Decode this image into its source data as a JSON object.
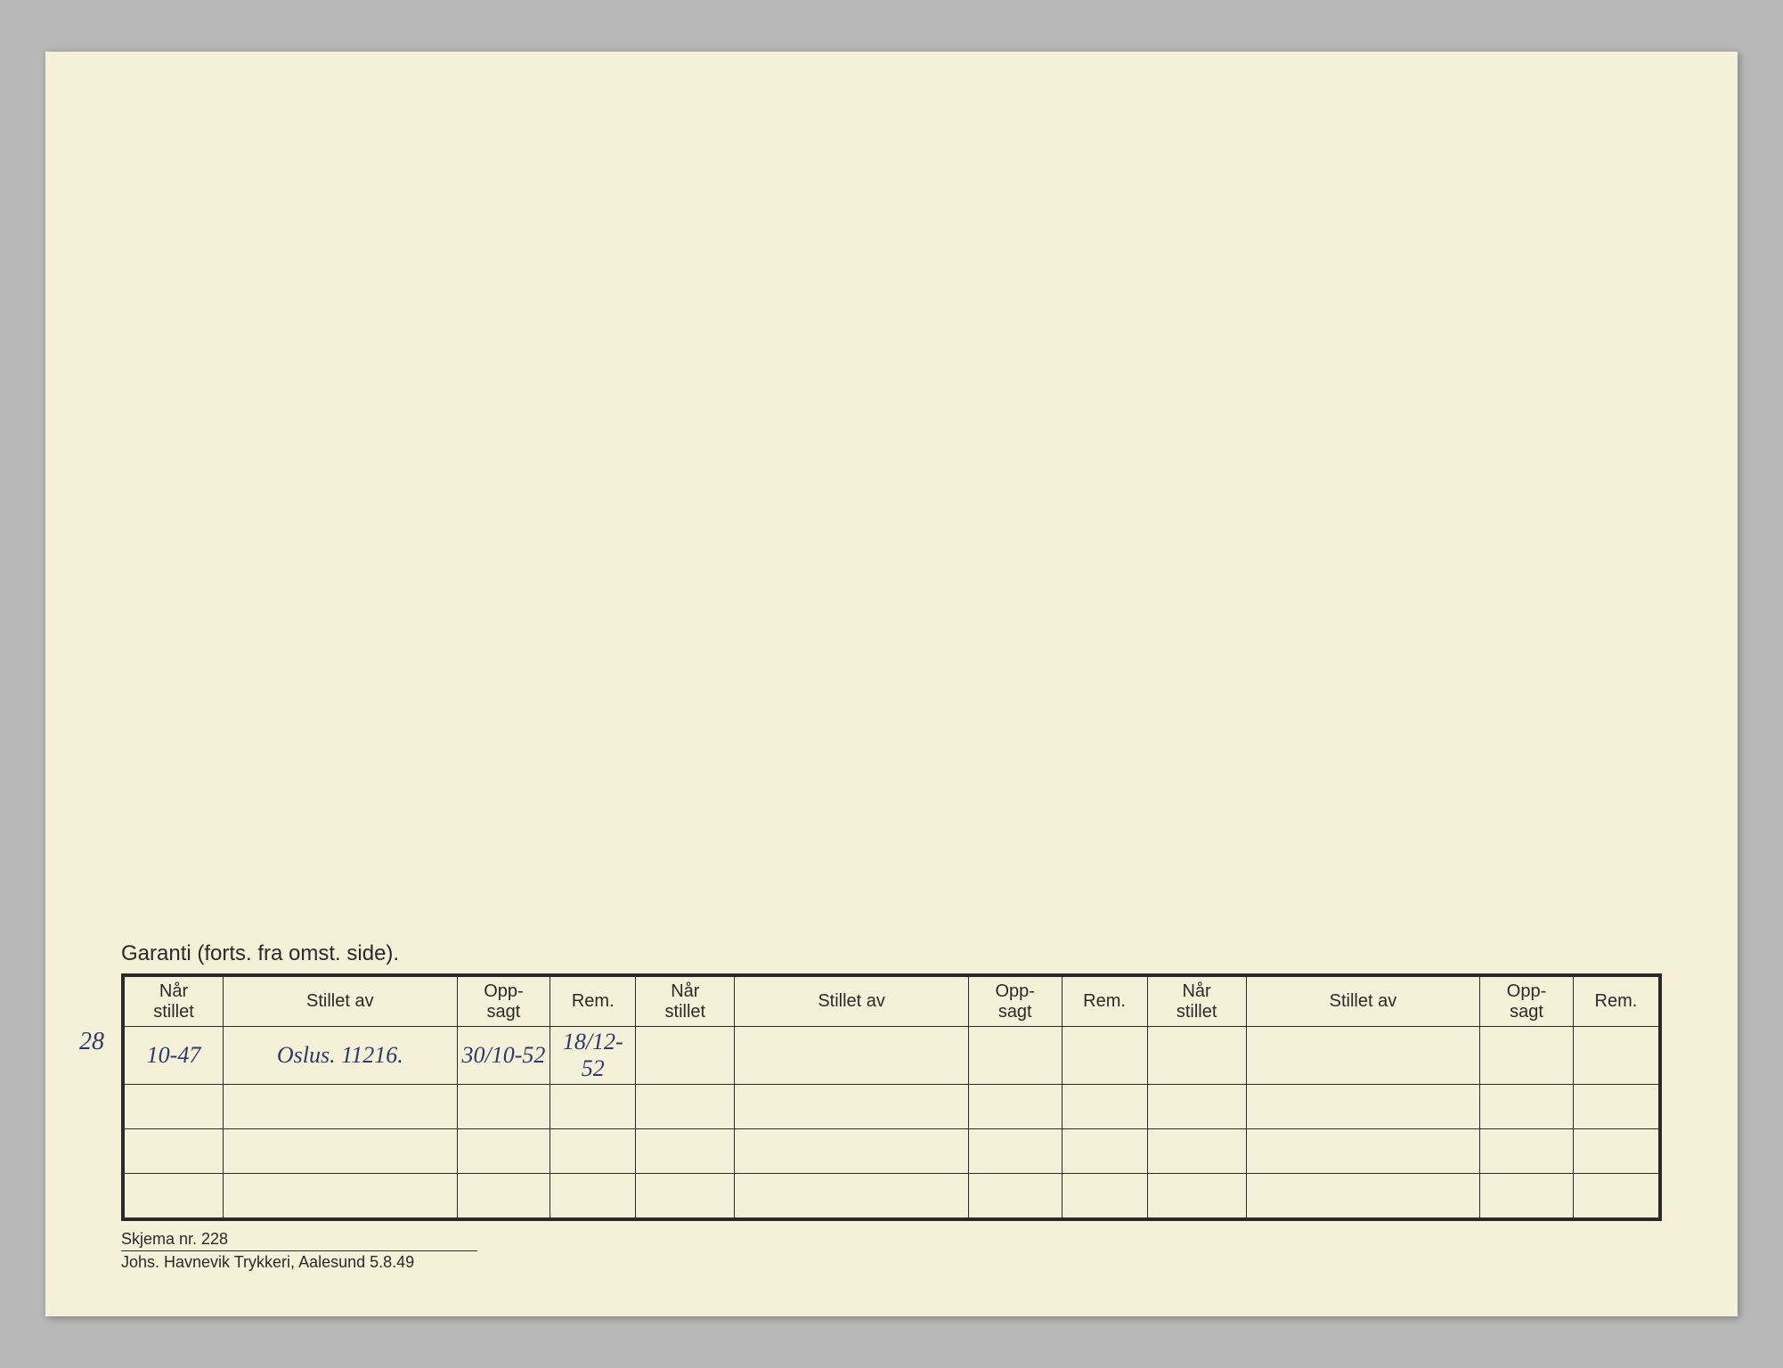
{
  "page": {
    "background_color": "#b8b8b8",
    "paper_color": "#f5f0d8",
    "text_color": "#2a2a2a",
    "handwriting_color": "#2a3a6e",
    "border_color": "#2a2a2a"
  },
  "title": "Garanti (forts. fra omst. side).",
  "table": {
    "header_groups": 3,
    "columns": [
      {
        "label": "Når\nstillet",
        "class": "col-nar"
      },
      {
        "label": "Stillet av",
        "class": "col-stillet-av"
      },
      {
        "label": "Opp-\nsagt",
        "class": "col-opp"
      },
      {
        "label": "Rem.",
        "class": "col-rem"
      }
    ],
    "num_data_rows": 4,
    "rows": [
      {
        "margin_note": "28",
        "cells": [
          "10-47",
          "Oslus. 11216.",
          "30/10-52",
          "18/12-52",
          "",
          "",
          "",
          "",
          "",
          "",
          "",
          ""
        ]
      },
      {
        "margin_note": "",
        "cells": [
          "",
          "",
          "",
          "",
          "",
          "",
          "",
          "",
          "",
          "",
          "",
          ""
        ]
      },
      {
        "margin_note": "",
        "cells": [
          "",
          "",
          "",
          "",
          "",
          "",
          "",
          "",
          "",
          "",
          "",
          ""
        ]
      },
      {
        "margin_note": "",
        "cells": [
          "",
          "",
          "",
          "",
          "",
          "",
          "",
          "",
          "",
          "",
          "",
          ""
        ]
      }
    ]
  },
  "footer": {
    "line1": "Skjema nr. 228",
    "line2": "Johs. Havnevik Trykkeri, Aalesund 5.8.49"
  },
  "typography": {
    "title_fontsize": 24,
    "header_fontsize": 20,
    "handwriting_fontsize": 26,
    "footer_fontsize": 18
  }
}
